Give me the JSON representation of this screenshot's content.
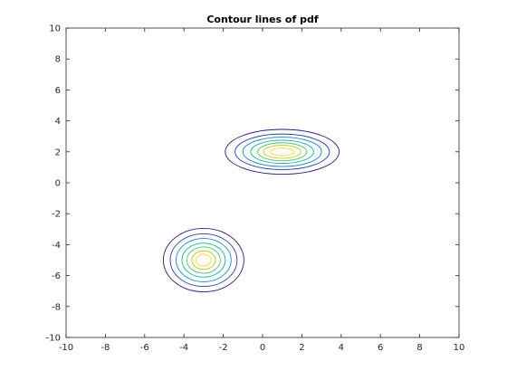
{
  "chart_data": {
    "type": "contour",
    "title": "Contour lines of pdf",
    "xlabel": "",
    "ylabel": "",
    "xlim": [
      -10,
      10
    ],
    "ylim": [
      -10,
      10
    ],
    "xticks": [
      -10,
      -8,
      -6,
      -4,
      -2,
      0,
      2,
      4,
      6,
      8,
      10
    ],
    "yticks": [
      -10,
      -8,
      -6,
      -4,
      -2,
      0,
      2,
      4,
      6,
      8,
      10
    ],
    "grid": false,
    "level_colors": [
      "#2a1a7a",
      "#2e3fa6",
      "#1f7fc4",
      "#0fae9f",
      "#54c36e",
      "#c2c43a",
      "#f5d93a"
    ],
    "clusters": [
      {
        "name": "",
        "center": [
          1,
          2
        ],
        "semi_axes": [
          [
            2.9,
            1.45
          ],
          [
            2.4,
            1.15
          ],
          [
            2.0,
            0.95
          ],
          [
            1.6,
            0.75
          ],
          [
            1.25,
            0.58
          ],
          [
            0.95,
            0.42
          ],
          [
            0.6,
            0.25
          ]
        ]
      },
      {
        "name": "",
        "center": [
          -3,
          -5
        ],
        "semi_axes": [
          [
            2.05,
            2.05
          ],
          [
            1.7,
            1.7
          ],
          [
            1.4,
            1.4
          ],
          [
            1.1,
            1.1
          ],
          [
            0.85,
            0.85
          ],
          [
            0.6,
            0.6
          ],
          [
            0.38,
            0.38
          ]
        ]
      }
    ]
  }
}
